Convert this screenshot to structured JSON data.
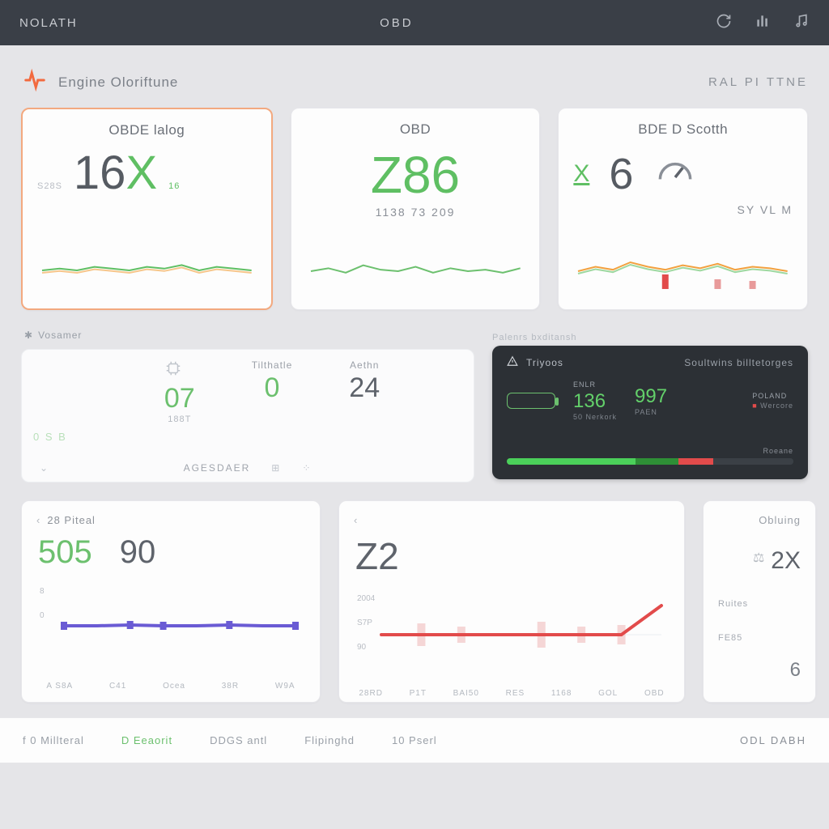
{
  "colors": {
    "topbar_bg": "#3a3f47",
    "page_bg": "#e5e5e8",
    "card_bg": "#fdfdfd",
    "card_border": "#e6e6ea",
    "highlight_border": "#f3a97f",
    "text_muted": "#7b8088",
    "text_dim": "#b4b9c0",
    "accent_orange": "#f26a3f",
    "accent_green": "#5fbf63",
    "accent_green_bright": "#63d06a",
    "dark_panel": "#2c3035",
    "line_red": "#e24b4b",
    "line_purple": "#6a5bd4",
    "line_orange": "#f2a13f"
  },
  "topbar": {
    "brand": "NOLATH",
    "center": "OBD"
  },
  "section": {
    "icon": "pulse-icon",
    "title": "Engine Oloriftune",
    "right": "RAL PI TTNE"
  },
  "row1": {
    "cards": [
      {
        "title": "OBDE lalog",
        "small": "S28S",
        "big_prefix": "16",
        "big_suffix": "X",
        "pct": "16",
        "spark": {
          "type": "line",
          "stroke": "#5fbf63",
          "stroke2": "#f2a13f",
          "width": 2,
          "points": [
            30,
            31,
            30,
            32,
            31,
            30,
            32,
            31,
            33,
            30,
            32,
            31,
            30
          ],
          "accent_index": 11,
          "ylim": [
            20,
            40
          ]
        }
      },
      {
        "title": "OBD",
        "big": "Z86",
        "sub": "1138 73 209",
        "spark": {
          "type": "line",
          "stroke": "#6cc06e",
          "width": 2,
          "points": [
            32,
            34,
            31,
            36,
            33,
            32,
            35,
            31,
            34,
            32,
            33,
            31,
            34
          ],
          "ylim": [
            20,
            44
          ]
        }
      },
      {
        "title": "BDE D Scotth",
        "left_mark": "X",
        "big": "6",
        "gauge_color": "#8a8f97",
        "sub_right": "SY VL M",
        "spark": {
          "type": "line_with_bars",
          "stroke": "#f2a13f",
          "stroke2": "#5fbf63",
          "bar_color": "#e89a9a",
          "bar_color2": "#e24b4b",
          "width": 2,
          "points": [
            30,
            33,
            31,
            36,
            33,
            31,
            34,
            32,
            35,
            31,
            33,
            32,
            30
          ],
          "bars": [
            {
              "x": 5,
              "h": 18,
              "c": "#e24b4b"
            },
            {
              "x": 8,
              "h": 12,
              "c": "#e89a9a"
            },
            {
              "x": 10,
              "h": 10,
              "c": "#e89a9a"
            }
          ],
          "ylim": [
            18,
            42
          ]
        }
      }
    ]
  },
  "mini_head": "Vosamer",
  "row2": {
    "left": {
      "cols": [
        {
          "lbl": "",
          "val": "07",
          "sub": "188T",
          "green": true,
          "icon": "chip-icon"
        },
        {
          "lbl": "Tilthatle",
          "val": "0",
          "green": true
        },
        {
          "lbl": "Aethn",
          "val": "24",
          "green": false
        }
      ],
      "side_label": "0 S B",
      "bottom_label": "AGESDAER"
    },
    "caption_right": "Palenrs bxditansh",
    "dark": {
      "hd_icon": "warning-icon",
      "hd1": "Triyoos",
      "hd2": "Soultwins billtetorges",
      "metrics": [
        {
          "n": "136",
          "green": true,
          "t": "ENLR",
          "s": "50 Nerkork"
        },
        {
          "n": "997",
          "green": true,
          "t": "",
          "s": "PAEN"
        },
        {
          "n": "",
          "green": false,
          "t": "POLAND",
          "s": "Wercore",
          "dot": "#e24b4b"
        }
      ],
      "bar": {
        "segments": [
          {
            "w": 45,
            "c": "#4bd05a"
          },
          {
            "w": 15,
            "c": "#2e8f36"
          },
          {
            "w": 12,
            "c": "#e24b4b"
          },
          {
            "w": 28,
            "c": "#3b4046"
          }
        ],
        "right_label": "Roeane"
      }
    }
  },
  "row3": {
    "c1": {
      "title": "28 Piteal",
      "m1": "505",
      "m2": "90",
      "chart": {
        "type": "line",
        "stroke": "#6a5bd4",
        "width": 4,
        "marker_color": "#6a5bd4",
        "grid_color": "#eceef1",
        "ylim": [
          0,
          100
        ],
        "points": [
          46,
          46,
          47,
          46,
          46,
          47,
          46,
          46
        ],
        "markers": [
          0,
          2,
          3,
          5,
          7
        ],
        "ylabels": [
          "8",
          "0"
        ],
        "xlabels": [
          "A S8A",
          "C41",
          "Ocea",
          "38R",
          "W9A"
        ]
      }
    },
    "c2": {
      "title_icon": "chevron-left-icon",
      "big": "Z2",
      "chart": {
        "type": "line",
        "stroke": "#e24b4b",
        "width": 4,
        "grid_color": "#eceef1",
        "ylim": [
          0,
          100
        ],
        "points": [
          44,
          44,
          44,
          44,
          44,
          44,
          44,
          80
        ],
        "bars": [
          {
            "x": 1,
            "h": 14
          },
          {
            "x": 2,
            "h": 10
          },
          {
            "x": 4,
            "h": 16
          },
          {
            "x": 5,
            "h": 10
          },
          {
            "x": 6,
            "h": 12
          }
        ],
        "bar_color": "#f0bdbd",
        "ylabels": [
          "2004",
          "S7P",
          "90"
        ],
        "xlabels": [
          "28RD",
          "P1T",
          "BAI50",
          "RES",
          "1168",
          "GOL",
          "OBD"
        ]
      }
    },
    "c3": {
      "title": "Obluing",
      "val": "2X",
      "side1": "Ruites",
      "side2": "FE85",
      "side_val": "6"
    }
  },
  "footer": {
    "items": [
      "f 0 Millteral",
      "D Eeaorit",
      "DDGS antl",
      "Flipinghd",
      "10 Pserl"
    ],
    "brand": "ODL DABH"
  }
}
